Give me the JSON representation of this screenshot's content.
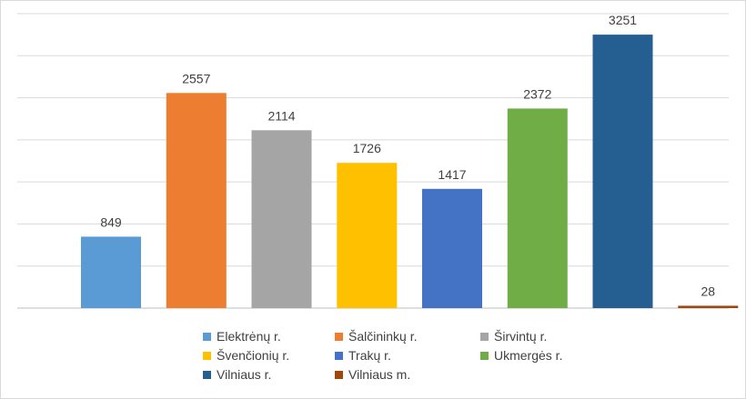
{
  "chart_data": {
    "type": "bar",
    "title": "",
    "xlabel": "",
    "ylabel": "",
    "ylim": [
      0,
      3500
    ],
    "grid": true,
    "legend_position": "bottom",
    "series": [
      {
        "name": "Elektrėnų r.",
        "value": 849,
        "color": "#5b9bd5"
      },
      {
        "name": "Šalčininkų r.",
        "value": 2557,
        "color": "#ed7d31"
      },
      {
        "name": "Širvintų r.",
        "value": 2114,
        "color": "#a5a5a5"
      },
      {
        "name": "Švenčionių r.",
        "value": 1726,
        "color": "#ffc000"
      },
      {
        "name": "Trakų r.",
        "value": 1417,
        "color": "#4472c4"
      },
      {
        "name": "Ukmergės r.",
        "value": 2372,
        "color": "#70ad47"
      },
      {
        "name": "Vilniaus r.",
        "value": 3251,
        "color": "#255e91"
      },
      {
        "name": "Vilniaus m.",
        "value": 28,
        "color": "#9e480e"
      }
    ]
  }
}
